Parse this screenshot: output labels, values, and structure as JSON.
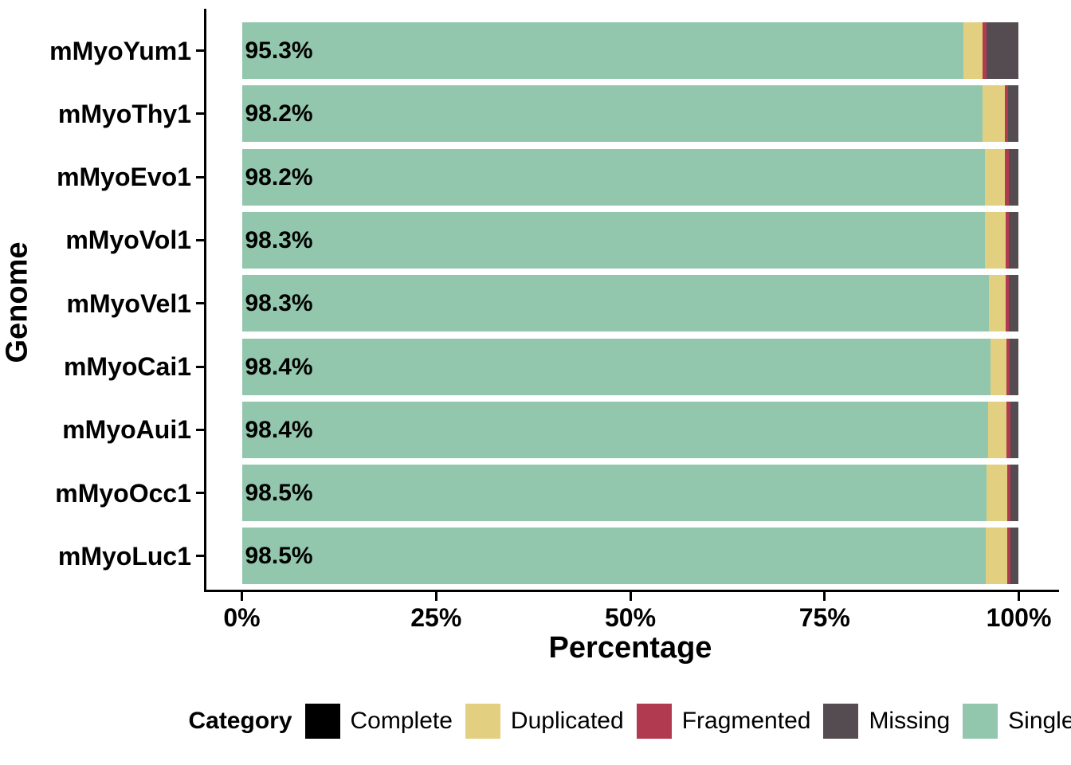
{
  "chart_data": {
    "type": "bar",
    "orientation": "horizontal",
    "stacked": true,
    "title": "",
    "xlabel": "Percentage",
    "ylabel": "Genome",
    "xlim": [
      0,
      100
    ],
    "grid": false,
    "x_ticks": [
      {
        "value": 0,
        "label": "0%"
      },
      {
        "value": 25,
        "label": "25%"
      },
      {
        "value": 50,
        "label": "50%"
      },
      {
        "value": 75,
        "label": "75%"
      },
      {
        "value": 100,
        "label": "100%"
      }
    ],
    "categories": [
      "mMyoYum1",
      "mMyoThy1",
      "mMyoEvo1",
      "mMyoVol1",
      "mMyoVel1",
      "mMyoCai1",
      "mMyoAui1",
      "mMyoOcc1",
      "mMyoLuc1"
    ],
    "bar_labels": [
      "95.3%",
      "98.2%",
      "98.2%",
      "98.3%",
      "98.3%",
      "98.4%",
      "98.4%",
      "98.5%",
      "98.5%"
    ],
    "series": [
      {
        "name": "Single",
        "color": "#92C7AD",
        "values": [
          92.9,
          95.3,
          95.6,
          95.6,
          96.2,
          96.4,
          96.0,
          95.8,
          95.7
        ]
      },
      {
        "name": "Duplicated",
        "color": "#E2D080",
        "values": [
          2.4,
          2.9,
          2.6,
          2.7,
          2.1,
          2.0,
          2.4,
          2.7,
          2.8
        ]
      },
      {
        "name": "Fragmented",
        "color": "#B13A50",
        "values": [
          0.5,
          0.4,
          0.5,
          0.4,
          0.4,
          0.4,
          0.5,
          0.4,
          0.4
        ]
      },
      {
        "name": "Missing",
        "color": "#544C50",
        "values": [
          4.2,
          1.4,
          1.3,
          1.3,
          1.3,
          1.2,
          1.1,
          1.1,
          1.1
        ]
      }
    ],
    "legend": {
      "position": "bottom",
      "title": "Category",
      "entries": [
        {
          "label": "Complete",
          "color": "#000000"
        },
        {
          "label": "Duplicated",
          "color": "#E2D080"
        },
        {
          "label": "Fragmented",
          "color": "#B13A50"
        },
        {
          "label": "Missing",
          "color": "#544C50"
        },
        {
          "label": "Single",
          "color": "#92C7AD"
        }
      ]
    }
  }
}
